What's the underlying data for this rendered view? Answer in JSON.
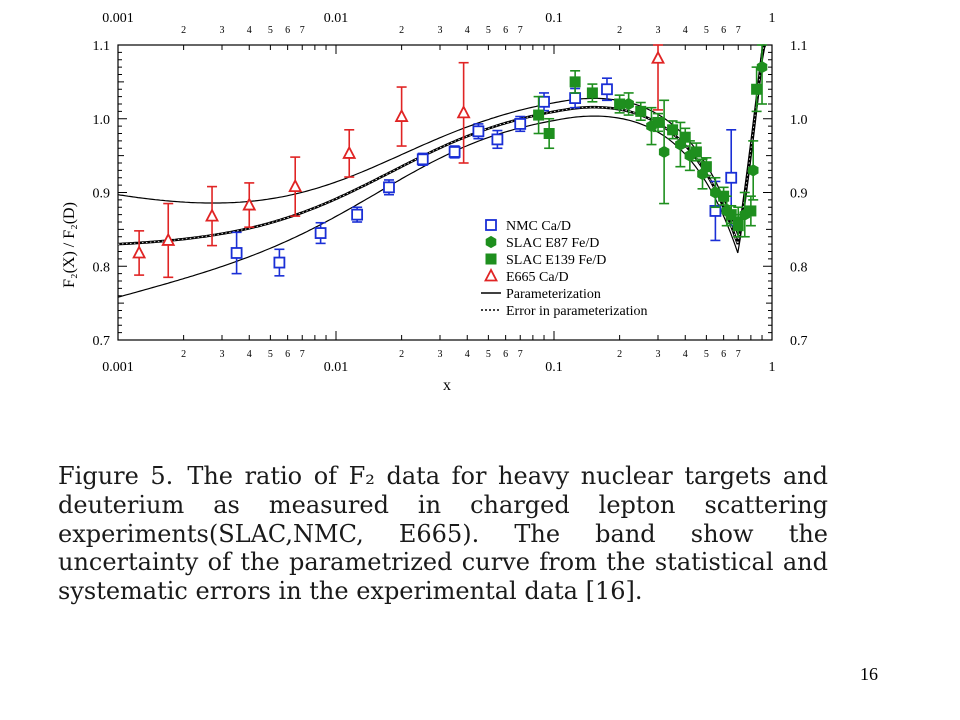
{
  "chart_data": {
    "type": "scatter",
    "x_scale": "log",
    "xlim": [
      0.001,
      1
    ],
    "ylim": [
      0.7,
      1.1
    ],
    "xlabel": "x",
    "ylabel": "F₂(X) / F₂(D)",
    "x_major_ticks": [
      {
        "value": 0.001,
        "label": "0.001"
      },
      {
        "value": 0.01,
        "label": "0.01"
      },
      {
        "value": 0.1,
        "label": "0.1"
      },
      {
        "value": 1,
        "label": "1"
      }
    ],
    "x_minor_labels": [
      "2",
      "3",
      "4",
      "5",
      "6",
      "7"
    ],
    "y_ticks": [
      {
        "value": 0.7,
        "label": "0.7"
      },
      {
        "value": 0.8,
        "label": "0.8"
      },
      {
        "value": 0.9,
        "label": "0.9"
      },
      {
        "value": 1.0,
        "label": "1.0"
      },
      {
        "value": 1.1,
        "label": "1.1"
      }
    ],
    "legend_position": "center-right",
    "series": [
      {
        "name": "NMC Ca/D",
        "color": "#1a2fd6",
        "marker": "open-square",
        "points": [
          {
            "x": 0.0035,
            "y": 0.818,
            "err": 0.028
          },
          {
            "x": 0.0055,
            "y": 0.805,
            "err": 0.018
          },
          {
            "x": 0.0085,
            "y": 0.845,
            "err": 0.014
          },
          {
            "x": 0.0125,
            "y": 0.87,
            "err": 0.01
          },
          {
            "x": 0.0175,
            "y": 0.907,
            "err": 0.01
          },
          {
            "x": 0.025,
            "y": 0.945,
            "err": 0.008
          },
          {
            "x": 0.035,
            "y": 0.955,
            "err": 0.008
          },
          {
            "x": 0.045,
            "y": 0.983,
            "err": 0.01
          },
          {
            "x": 0.055,
            "y": 0.972,
            "err": 0.012
          },
          {
            "x": 0.07,
            "y": 0.993,
            "err": 0.01
          },
          {
            "x": 0.09,
            "y": 1.023,
            "err": 0.012
          },
          {
            "x": 0.125,
            "y": 1.028,
            "err": 0.013
          },
          {
            "x": 0.175,
            "y": 1.04,
            "err": 0.015
          },
          {
            "x": 0.55,
            "y": 0.875,
            "err": 0.04
          },
          {
            "x": 0.65,
            "y": 0.92,
            "err": 0.065
          }
        ]
      },
      {
        "name": "SLAC E87 Fe/D",
        "color": "#1e8f1e",
        "marker": "filled-hexagon",
        "points": [
          {
            "x": 0.22,
            "y": 1.02,
            "err": 0.015
          },
          {
            "x": 0.28,
            "y": 0.99,
            "err": 0.025
          },
          {
            "x": 0.32,
            "y": 0.955,
            "err": 0.07
          },
          {
            "x": 0.38,
            "y": 0.965,
            "err": 0.03
          },
          {
            "x": 0.42,
            "y": 0.95,
            "err": 0.02
          },
          {
            "x": 0.48,
            "y": 0.925,
            "err": 0.02
          },
          {
            "x": 0.55,
            "y": 0.9,
            "err": 0.02
          },
          {
            "x": 0.62,
            "y": 0.875,
            "err": 0.02
          },
          {
            "x": 0.7,
            "y": 0.86,
            "err": 0.02
          },
          {
            "x": 0.75,
            "y": 0.87,
            "err": 0.03
          },
          {
            "x": 0.82,
            "y": 0.93,
            "err": 0.04
          },
          {
            "x": 0.9,
            "y": 1.07,
            "err": 0.05
          }
        ]
      },
      {
        "name": "SLAC E139 Fe/D",
        "color": "#1e8f1e",
        "marker": "filled-square",
        "points": [
          {
            "x": 0.085,
            "y": 1.005,
            "err": 0.025
          },
          {
            "x": 0.095,
            "y": 0.98,
            "err": 0.02
          },
          {
            "x": 0.125,
            "y": 1.05,
            "err": 0.015
          },
          {
            "x": 0.15,
            "y": 1.035,
            "err": 0.012
          },
          {
            "x": 0.2,
            "y": 1.02,
            "err": 0.012
          },
          {
            "x": 0.25,
            "y": 1.01,
            "err": 0.012
          },
          {
            "x": 0.3,
            "y": 0.995,
            "err": 0.012
          },
          {
            "x": 0.35,
            "y": 0.985,
            "err": 0.012
          },
          {
            "x": 0.4,
            "y": 0.975,
            "err": 0.012
          },
          {
            "x": 0.45,
            "y": 0.955,
            "err": 0.012
          },
          {
            "x": 0.5,
            "y": 0.935,
            "err": 0.012
          },
          {
            "x": 0.6,
            "y": 0.895,
            "err": 0.012
          },
          {
            "x": 0.65,
            "y": 0.87,
            "err": 0.012
          },
          {
            "x": 0.7,
            "y": 0.855,
            "err": 0.015
          },
          {
            "x": 0.8,
            "y": 0.875,
            "err": 0.02
          },
          {
            "x": 0.85,
            "y": 1.04,
            "err": 0.03
          }
        ]
      },
      {
        "name": "E665  Ca/D",
        "color": "#e02424",
        "marker": "open-triangle",
        "points": [
          {
            "x": 0.00125,
            "y": 0.818,
            "err": 0.03
          },
          {
            "x": 0.0017,
            "y": 0.835,
            "err": 0.05
          },
          {
            "x": 0.0027,
            "y": 0.868,
            "err": 0.04
          },
          {
            "x": 0.004,
            "y": 0.883,
            "err": 0.03
          },
          {
            "x": 0.0065,
            "y": 0.908,
            "err": 0.04
          },
          {
            "x": 0.0115,
            "y": 0.953,
            "err": 0.032
          },
          {
            "x": 0.02,
            "y": 1.003,
            "err": 0.04
          },
          {
            "x": 0.0385,
            "y": 1.008,
            "err": 0.068
          },
          {
            "x": 0.3,
            "y": 1.082,
            "err": 0.07
          }
        ]
      }
    ],
    "curves": [
      {
        "name": "Parameterization",
        "style": "solid",
        "role": "central"
      },
      {
        "name": "Error in parameterization",
        "style": "dotted",
        "role": "band"
      }
    ]
  },
  "caption": {
    "figure_label": "Figure 5.",
    "text": "The ratio of F₂ data for heavy nuclear targets and deuterium as measured in charged lepton scattering experiments(SLAC,NMC, E665). The band show the uncertainty of the parametrized curve from the statistical and systematic errors in the experimental data [16]."
  },
  "slide_number": "16"
}
